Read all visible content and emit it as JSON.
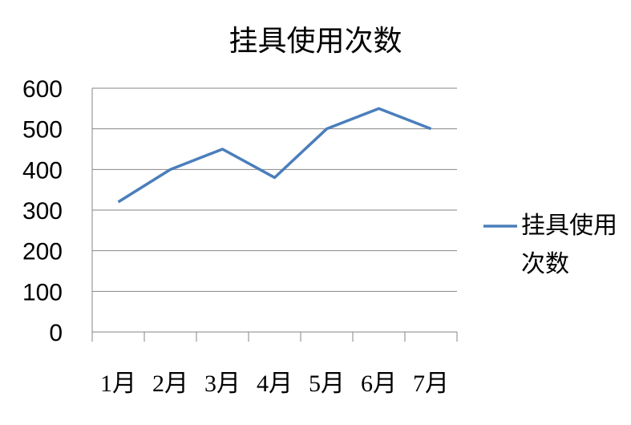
{
  "chart_data": {
    "type": "line",
    "title": "挂具使用次数",
    "categories": [
      "1月",
      "2月",
      "3月",
      "4月",
      "5月",
      "6月",
      "7月"
    ],
    "series": [
      {
        "name": "挂具使用次数",
        "values": [
          320,
          400,
          450,
          380,
          500,
          550,
          500
        ],
        "color": "#4a7ebb"
      }
    ],
    "ylim": [
      0,
      600
    ],
    "yticks": [
      0,
      100,
      200,
      300,
      400,
      500,
      600
    ],
    "grid": true,
    "legend": "right"
  }
}
